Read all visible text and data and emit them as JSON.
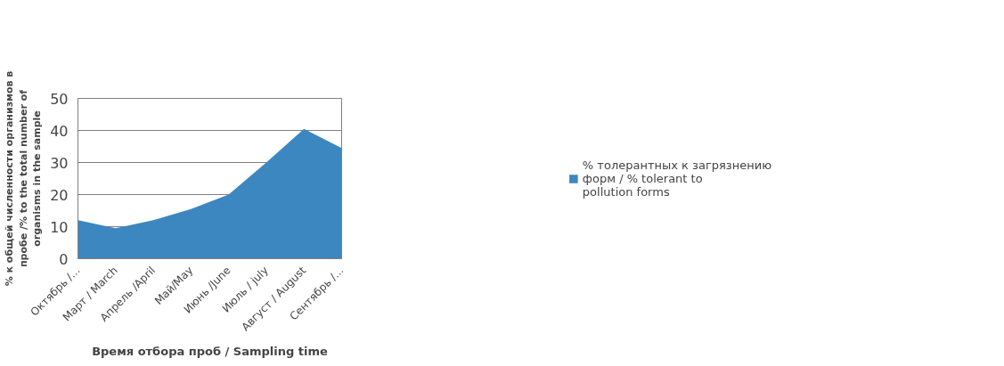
{
  "chart_data": {
    "type": "area",
    "xlabel": "Время отбора проб / Sampling time",
    "ylabel": "% к общей численности организмов в пробе /% to the total number of organisms in the sample",
    "categories": [
      "Октябрь /...",
      "Март / March",
      "Апрель /April",
      "Май/May",
      "Июнь /June",
      "Июль / july",
      "Август / August",
      "Сентябрь /..."
    ],
    "series": [
      {
        "name": "% толерантных к загрязнению форм / % tolerant to pollution forms",
        "color": "#3c87c0",
        "values": [
          12,
          9.5,
          12,
          15.5,
          20,
          30,
          40.5,
          34.5
        ]
      }
    ],
    "ylim": [
      0,
      50
    ],
    "yticks": [
      0,
      10,
      20,
      30,
      40,
      50
    ],
    "grid": "y",
    "legend": "right"
  }
}
